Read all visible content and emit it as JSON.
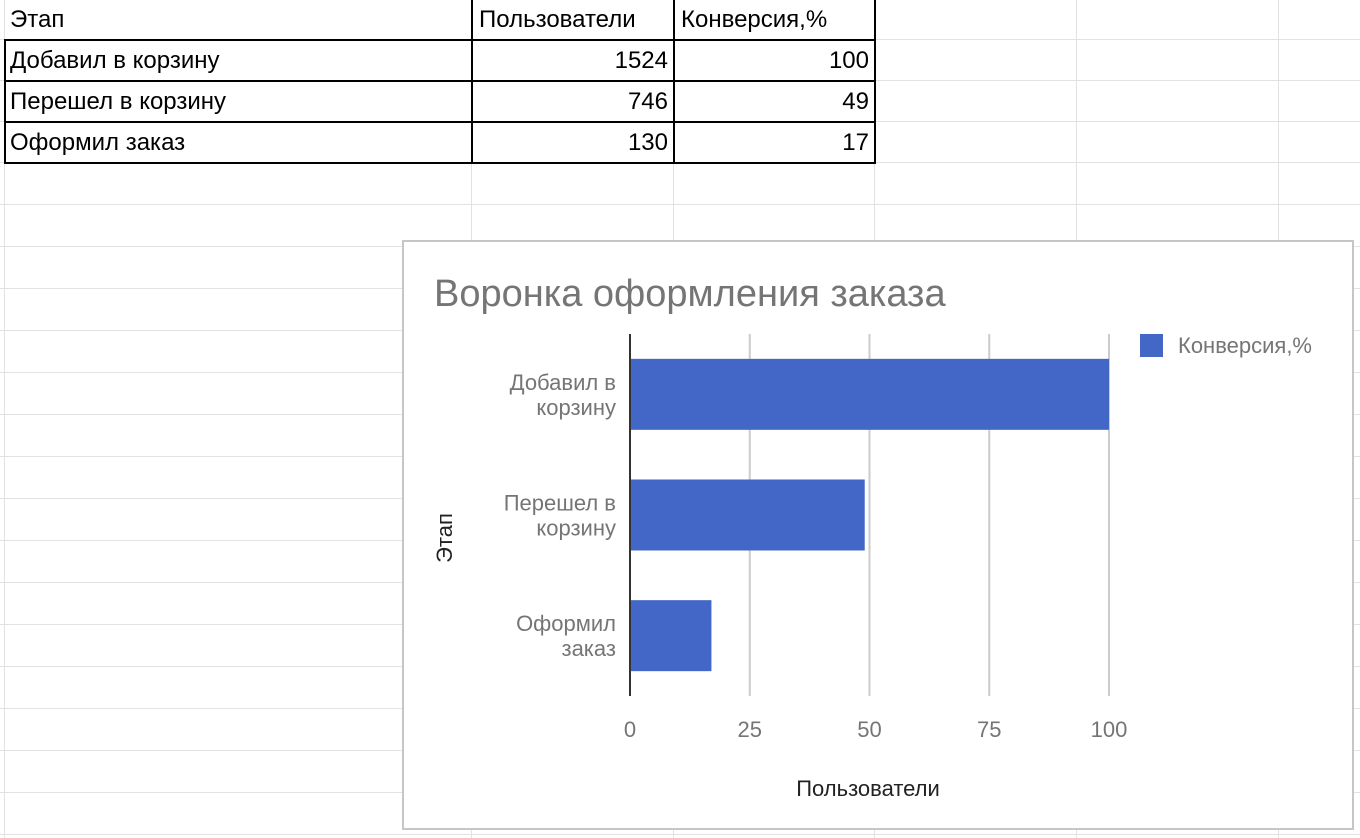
{
  "table": {
    "headers": [
      "Этап",
      "Пользователи",
      "Конверсия,%"
    ],
    "rows": [
      [
        "Добавил в корзину",
        "1524",
        "100"
      ],
      [
        "Перешел в корзину",
        "746",
        "49"
      ],
      [
        "Оформил заказ",
        "130",
        "17"
      ]
    ]
  },
  "chart_data": {
    "type": "bar",
    "orientation": "horizontal",
    "title": "Воронка оформления заказа",
    "categories": [
      [
        "Добавил в",
        "корзину"
      ],
      [
        "Перешел в",
        "корзину"
      ],
      [
        "Оформил",
        "заказ"
      ]
    ],
    "series": [
      {
        "name": "Конверсия,%",
        "values": [
          100,
          49,
          17
        ],
        "color": "#4267c7"
      }
    ],
    "xlabel": "Пользователи",
    "ylabel": "Этап",
    "xlim": [
      0,
      100
    ],
    "xticks": [
      "0",
      "25",
      "50",
      "75",
      "100"
    ],
    "grid": true,
    "legend_position": "right"
  }
}
